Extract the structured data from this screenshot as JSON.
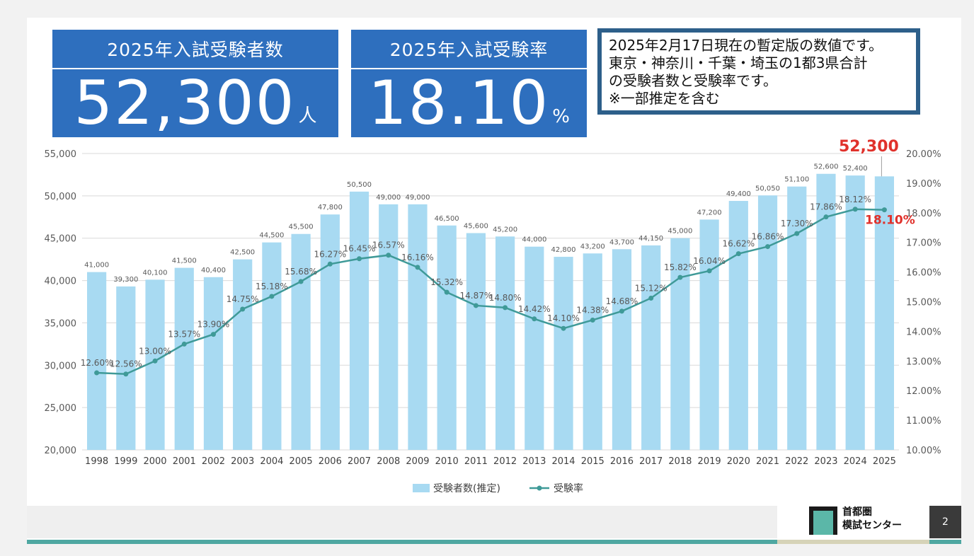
{
  "kpis": [
    {
      "title": "2025年入試受験者数",
      "value": "52,300",
      "unit": "人"
    },
    {
      "title": "2025年入試受験率",
      "value": "18.10",
      "unit": "%"
    }
  ],
  "note_lines": [
    "2025年2月17日現在の暫定版の数値です。",
    "東京・神奈川・千葉・埼玉の1都3県合計",
    "の受験者数と受験率です。",
    "※一部推定を含む"
  ],
  "footer": {
    "logo_line1": "首都圏",
    "logo_line2": "模試センター",
    "page_number": "2"
  },
  "colors": {
    "kpi_bg": "#2e6fbe",
    "bar": "#a8daf2",
    "line": "#3f9a98",
    "highlight": "#e0312b",
    "note_border": "#2d5f8a",
    "footer_teal": "#4fa8a2"
  },
  "chart_data": {
    "type": "bar",
    "categories": [
      "1998",
      "1999",
      "2000",
      "2001",
      "2002",
      "2003",
      "2004",
      "2005",
      "2006",
      "2007",
      "2008",
      "2009",
      "2010",
      "2011",
      "2012",
      "2013",
      "2014",
      "2015",
      "2016",
      "2017",
      "2018",
      "2019",
      "2020",
      "2021",
      "2022",
      "2023",
      "2024",
      "2025"
    ],
    "series": [
      {
        "name": "受験者数(推定)",
        "type": "bar",
        "axis": "left",
        "values": [
          41000,
          39300,
          40100,
          41500,
          40400,
          42500,
          44500,
          45500,
          47800,
          50500,
          49000,
          49000,
          46500,
          45600,
          45200,
          44000,
          42800,
          43200,
          43700,
          44150,
          45000,
          47200,
          49400,
          50050,
          51100,
          52600,
          52400,
          52300
        ],
        "labels": [
          "41,000",
          "39,300",
          "40,100",
          "41,500",
          "40,400",
          "42,500",
          "44,500",
          "45,500",
          "47,800",
          "50,500",
          "49,000",
          "49,000",
          "46,500",
          "45,600",
          "45,200",
          "44,000",
          "42,800",
          "43,200",
          "43,700",
          "44,150",
          "45,000",
          "47,200",
          "49,400",
          "50,050",
          "51,100",
          "52,600",
          "52,400",
          "52,300"
        ]
      },
      {
        "name": "受験率",
        "type": "line",
        "axis": "right",
        "values": [
          12.6,
          12.56,
          13.0,
          13.57,
          13.9,
          14.75,
          15.18,
          15.68,
          16.27,
          16.45,
          16.57,
          16.16,
          15.32,
          14.87,
          14.8,
          14.42,
          14.1,
          14.38,
          14.68,
          15.12,
          15.82,
          16.04,
          16.62,
          16.86,
          17.3,
          17.86,
          18.12,
          18.1
        ],
        "labels": [
          "12.60%",
          "12.56%",
          "13.00%",
          "13.57%",
          "13.90%",
          "14.75%",
          "15.18%",
          "15.68%",
          "16.27%",
          "16.45%",
          "16.57%",
          "16.16%",
          "15.32%",
          "14.87%",
          "14.80%",
          "14.42%",
          "14.10%",
          "14.38%",
          "14.68%",
          "15.12%",
          "15.82%",
          "16.04%",
          "16.62%",
          "16.86%",
          "17.30%",
          "17.86%",
          "18.12%",
          "18.10%"
        ]
      }
    ],
    "left_axis": {
      "min": 20000,
      "max": 55000,
      "step": 5000,
      "ticks": [
        "20,000",
        "25,000",
        "30,000",
        "35,000",
        "40,000",
        "45,000",
        "50,000",
        "55,000"
      ]
    },
    "right_axis": {
      "min": 10,
      "max": 20,
      "step": 1,
      "ticks": [
        "10.00%",
        "11.00%",
        "12.00%",
        "13.00%",
        "14.00%",
        "15.00%",
        "16.00%",
        "17.00%",
        "18.00%",
        "19.00%",
        "20.00%"
      ]
    },
    "highlight_bar_label": "52,300",
    "highlight_line_label": "18.10%",
    "grid": true,
    "legend_position": "bottom"
  }
}
